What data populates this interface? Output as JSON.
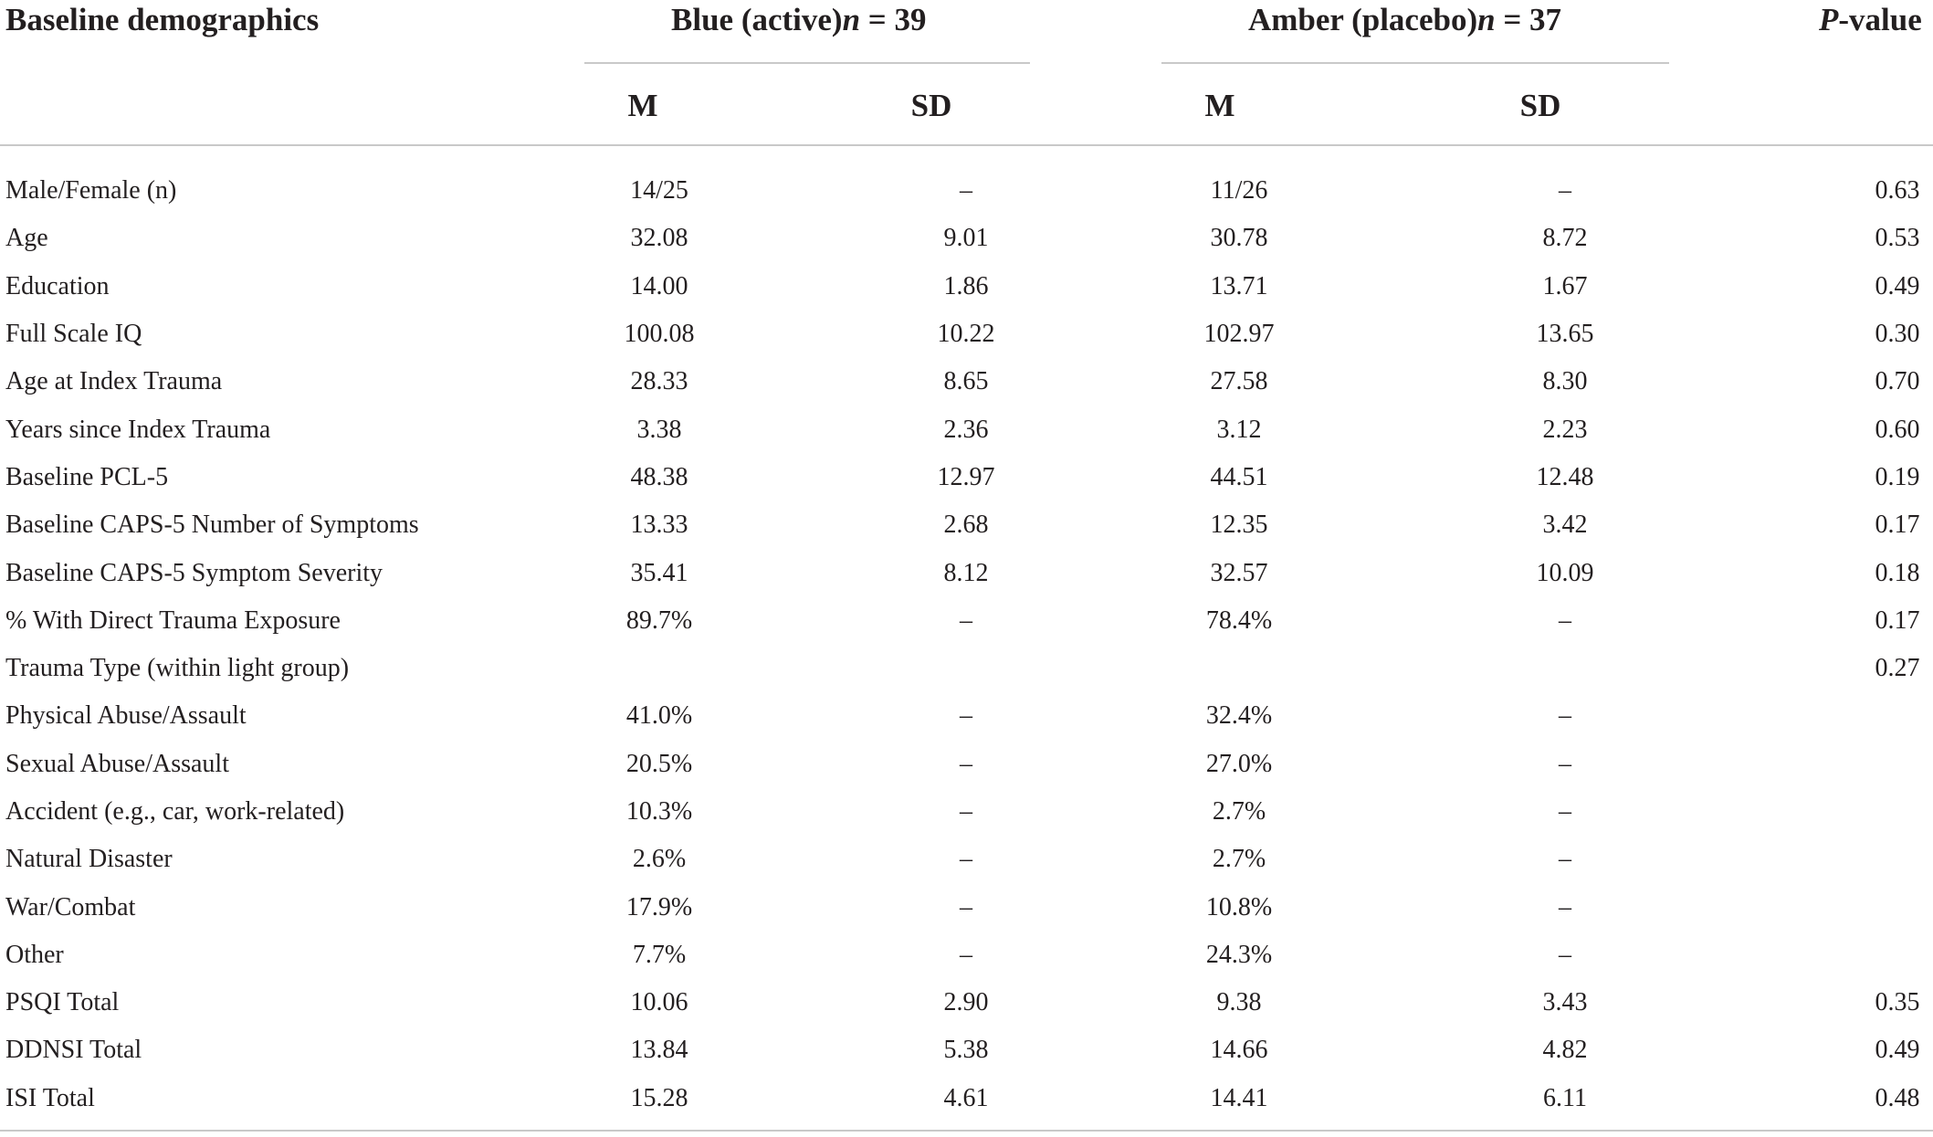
{
  "header": {
    "col_label": "Baseline demographics",
    "blue_group_label": "Blue (active)",
    "blue_n_var": "n",
    "blue_n_rest": " = 39",
    "amber_group_label": "Amber (placebo)",
    "amber_n_var": "n",
    "amber_n_rest": " = 37",
    "p_italic": "P",
    "p_rest": "-value",
    "sub_m": "M",
    "sub_sd": "SD"
  },
  "rows": [
    {
      "label": "Male/Female (n)",
      "blue_m": "14/25",
      "blue_sd": "–",
      "amber_m": "11/26",
      "amber_sd": "–",
      "p": "0.63"
    },
    {
      "label": "Age",
      "blue_m": "32.08",
      "blue_sd": "9.01",
      "amber_m": "30.78",
      "amber_sd": "8.72",
      "p": "0.53"
    },
    {
      "label": "Education",
      "blue_m": "14.00",
      "blue_sd": "1.86",
      "amber_m": "13.71",
      "amber_sd": "1.67",
      "p": "0.49"
    },
    {
      "label": "Full Scale IQ",
      "blue_m": "100.08",
      "blue_sd": "10.22",
      "amber_m": "102.97",
      "amber_sd": "13.65",
      "p": "0.30"
    },
    {
      "label": "Age at Index Trauma",
      "blue_m": "28.33",
      "blue_sd": "8.65",
      "amber_m": "27.58",
      "amber_sd": "8.30",
      "p": "0.70"
    },
    {
      "label": "Years since Index Trauma",
      "blue_m": "3.38",
      "blue_sd": "2.36",
      "amber_m": "3.12",
      "amber_sd": "2.23",
      "p": "0.60"
    },
    {
      "label": "Baseline PCL-5",
      "blue_m": "48.38",
      "blue_sd": "12.97",
      "amber_m": "44.51",
      "amber_sd": "12.48",
      "p": "0.19"
    },
    {
      "label": "Baseline CAPS-5 Number of Symptoms",
      "blue_m": "13.33",
      "blue_sd": "2.68",
      "amber_m": "12.35",
      "amber_sd": "3.42",
      "p": "0.17"
    },
    {
      "label": "Baseline CAPS-5 Symptom Severity",
      "blue_m": "35.41",
      "blue_sd": "8.12",
      "amber_m": "32.57",
      "amber_sd": "10.09",
      "p": "0.18"
    },
    {
      "label": "% With Direct Trauma Exposure",
      "blue_m": "89.7%",
      "blue_sd": "–",
      "amber_m": "78.4%",
      "amber_sd": "–",
      "p": "0.17"
    },
    {
      "label": "Trauma Type (within light group)",
      "blue_m": "",
      "blue_sd": "",
      "amber_m": "",
      "amber_sd": "",
      "p": "0.27"
    },
    {
      "label": "Physical Abuse/Assault",
      "blue_m": "41.0%",
      "blue_sd": "–",
      "amber_m": "32.4%",
      "amber_sd": "–",
      "p": ""
    },
    {
      "label": "Sexual Abuse/Assault",
      "blue_m": "20.5%",
      "blue_sd": "–",
      "amber_m": "27.0%",
      "amber_sd": "–",
      "p": ""
    },
    {
      "label": "Accident (e.g., car, work-related)",
      "blue_m": "10.3%",
      "blue_sd": "–",
      "amber_m": "2.7%",
      "amber_sd": "–",
      "p": ""
    },
    {
      "label": "Natural Disaster",
      "blue_m": "2.6%",
      "blue_sd": "–",
      "amber_m": "2.7%",
      "amber_sd": "–",
      "p": ""
    },
    {
      "label": "War/Combat",
      "blue_m": "17.9%",
      "blue_sd": "–",
      "amber_m": "10.8%",
      "amber_sd": "–",
      "p": ""
    },
    {
      "label": "Other",
      "blue_m": "7.7%",
      "blue_sd": "–",
      "amber_m": "24.3%",
      "amber_sd": "–",
      "p": ""
    },
    {
      "label": "PSQI Total",
      "blue_m": "10.06",
      "blue_sd": "2.90",
      "amber_m": "9.38",
      "amber_sd": "3.43",
      "p": "0.35"
    },
    {
      "label": "DDNSI Total",
      "blue_m": "13.84",
      "blue_sd": "5.38",
      "amber_m": "14.66",
      "amber_sd": "4.82",
      "p": "0.49"
    },
    {
      "label": "ISI Total",
      "blue_m": "15.28",
      "blue_sd": "4.61",
      "amber_m": "14.41",
      "amber_sd": "6.11",
      "p": "0.48"
    }
  ]
}
